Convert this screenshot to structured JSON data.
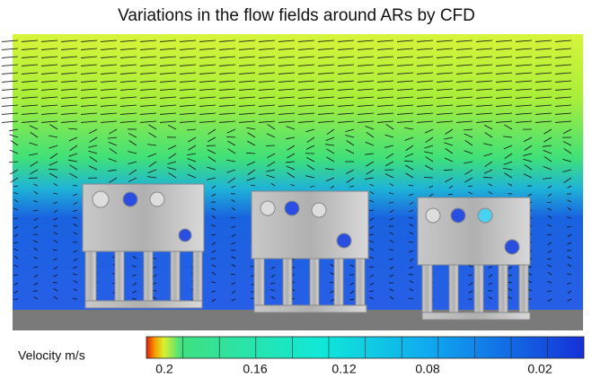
{
  "title": "Variations in the flow fields around ARs by CFD",
  "colorbar": {
    "label": "Velocity m/s",
    "ticks": [
      "0.2",
      "0.16",
      "0.12",
      "0.08",
      "0.02"
    ]
  }
}
